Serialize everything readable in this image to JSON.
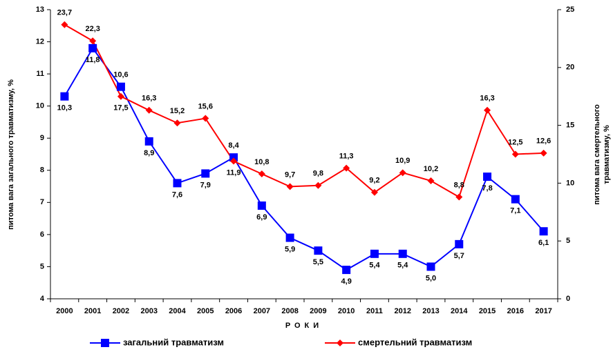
{
  "chart_data": {
    "type": "line",
    "categories": [
      "2000",
      "2001",
      "2002",
      "2003",
      "2004",
      "2005",
      "2006",
      "2007",
      "2008",
      "2009",
      "2010",
      "2011",
      "2012",
      "2013",
      "2014",
      "2015",
      "2016",
      "2017"
    ],
    "series": [
      {
        "name": "загальний травматизм",
        "color": "#0000ff",
        "marker": "square",
        "values": [
          10.3,
          11.8,
          10.6,
          8.9,
          7.6,
          7.9,
          8.4,
          6.9,
          5.9,
          5.5,
          4.9,
          5.4,
          5.4,
          5.0,
          5.7,
          7.8,
          7.1,
          6.1
        ],
        "value_labels": [
          "10,3",
          "11,8",
          "10,6",
          "8,9",
          "7,6",
          "7,9",
          "8,4",
          "6,9",
          "5,9",
          "5,5",
          "4,9",
          "5,4",
          "5,4",
          "5,0",
          "5,7",
          "7,8",
          "7,1",
          "6,1"
        ]
      },
      {
        "name": "смертельний травматизм",
        "color": "#ff0000",
        "marker": "diamond",
        "axis": "y2",
        "values": [
          23.7,
          22.3,
          17.5,
          16.3,
          15.2,
          15.6,
          11.9,
          10.8,
          9.7,
          9.8,
          11.3,
          9.2,
          10.9,
          10.2,
          8.8,
          16.3,
          12.5,
          12.6
        ],
        "value_labels": [
          "23,7",
          "22,3",
          "17,5",
          "16,3",
          "15,2",
          "15,6",
          "11,9",
          "10,8",
          "9,7",
          "9,8",
          "11,3",
          "9,2",
          "10,9",
          "10,2",
          "8,8",
          "16,3",
          "12,5",
          "12,6"
        ]
      }
    ],
    "ylabel": "питома вага загального травматизму, %",
    "y2label": [
      "питома вага смертельного",
      "травматизму, %"
    ],
    "xlabel": "РОКИ",
    "ylim": [
      4,
      13
    ],
    "yticks": [
      4,
      5,
      6,
      7,
      8,
      9,
      10,
      11,
      12,
      13
    ],
    "y2lim": [
      0,
      25
    ],
    "y2ticks": [
      0,
      5,
      10,
      15,
      20,
      25
    ],
    "grid": false,
    "legend": "bottom"
  }
}
